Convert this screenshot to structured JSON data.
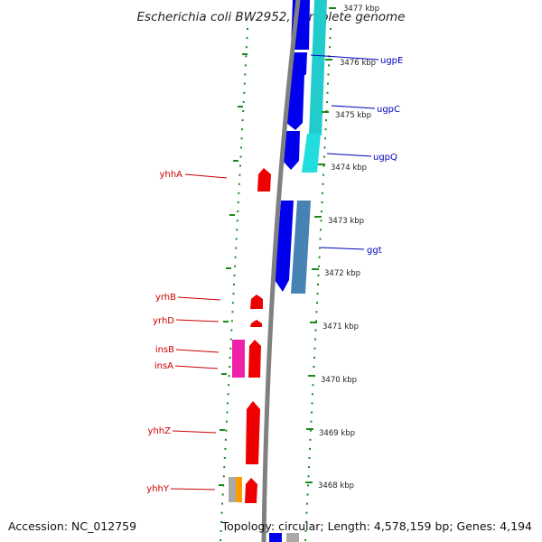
{
  "title": "Escherichia coli BW2952, complete genome",
  "footer": {
    "accession": "Accession: NC_012759",
    "summary": "Topology: circular; Length: 4,578,159 bp; Genes: 4,194"
  },
  "colors": {
    "backbone": "#808080",
    "forward_gene_blue": "#0000ee",
    "cyan_gene": "#22cccc",
    "steel_gene": "#4682b4",
    "reverse_gene_red": "#ee0000",
    "pink_gene": "#ee22aa",
    "gray_gene": "#aaaaaa",
    "orange_gene": "#ff9900",
    "tick_green": "#1a8a1a",
    "label_blue": "#0000bb",
    "label_red": "#cc0000"
  },
  "ruler": {
    "unit": "kbp",
    "ticks": [
      "3477 kbp",
      "3476 kbp",
      "3475 kbp",
      "3474 kbp",
      "3473 kbp",
      "3472 kbp",
      "3471 kbp",
      "3470 kbp",
      "3469 kbp",
      "3468 kbp"
    ]
  },
  "genes_right": [
    "ugpE",
    "ugpC",
    "ugpQ",
    "ggt"
  ],
  "genes_left": [
    "yhhA",
    "yrhB",
    "yrhD",
    "insB",
    "insA",
    "yhhZ",
    "yhhY"
  ]
}
